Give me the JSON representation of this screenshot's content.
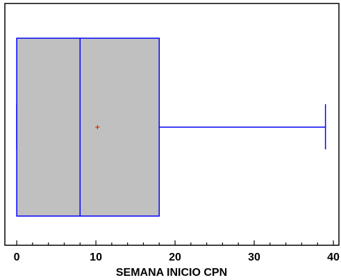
{
  "chart_data": {
    "type": "boxplot",
    "title": "",
    "xlabel": "SEMANA INICIO CPN",
    "ylabel": "",
    "xlim": [
      -1.5,
      40.7
    ],
    "x_ticks": [
      0,
      10,
      20,
      30,
      40
    ],
    "x_tick_labels": [
      "0",
      "10",
      "20",
      "30",
      "40"
    ],
    "grid": false,
    "legend": "none",
    "box": {
      "min": 0,
      "q1": 0,
      "median": 8,
      "q3": 18,
      "max": 39,
      "mean": 10.2
    },
    "colors": {
      "box_fill": "#c0c0c0",
      "box_stroke": "#0000ff",
      "whisker": "#0000ff",
      "mean_marker": "#cc3300",
      "frame": "#000000"
    }
  }
}
